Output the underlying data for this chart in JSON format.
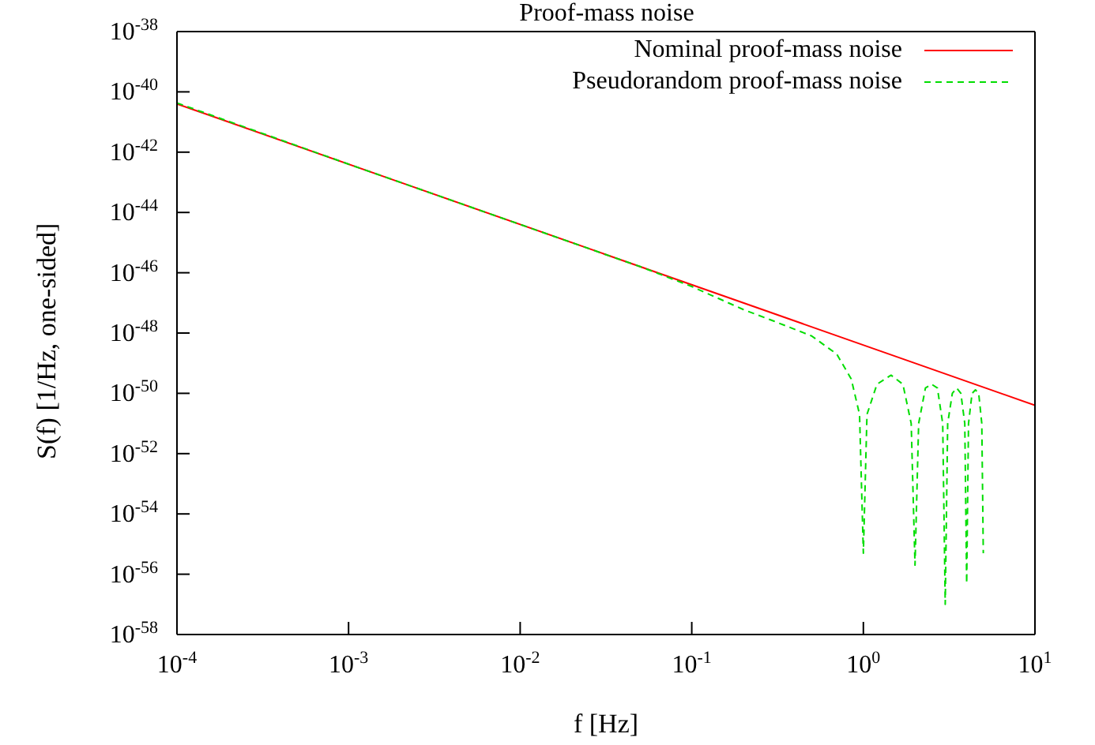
{
  "chart_data": {
    "type": "line",
    "title": "Proof-mass noise",
    "xlabel": "f [Hz]",
    "ylabel": "S(f) [1/Hz, one-sided]",
    "log": "xy",
    "legend": "top right",
    "grid": false,
    "xlim": [
      0.0001,
      10
    ],
    "xticks": [
      {
        "value": 0.0001,
        "label": "10$^{-4}$"
      },
      {
        "value": 0.001,
        "label": "10$^{-3}$"
      },
      {
        "value": 0.01,
        "label": "10$^{-2}$"
      },
      {
        "value": 0.1,
        "label": "10$^{-1}$"
      },
      {
        "value": 1,
        "label": "10$^{0}$"
      },
      {
        "value": 10,
        "label": "10$^{1}$"
      }
    ],
    "ylim": [
      1e-58,
      1e-38
    ],
    "yticks": [
      {
        "value": 1e-58,
        "label": "10$^{-58}$"
      },
      {
        "value": 1e-56,
        "label": "10$^{-56}$"
      },
      {
        "value": 1e-54,
        "label": "10$^{-54}$"
      },
      {
        "value": 1e-52,
        "label": "10$^{-52}$"
      },
      {
        "value": 1e-50,
        "label": "10$^{-50}$"
      },
      {
        "value": 1e-48,
        "label": "10$^{-48}$"
      },
      {
        "value": 1e-46,
        "label": "10$^{-46}$"
      },
      {
        "value": 1e-44,
        "label": "10$^{-44}$"
      },
      {
        "value": 1e-42,
        "label": "10$^{-42}$"
      },
      {
        "value": 1e-40,
        "label": "10$^{-40}$"
      },
      {
        "value": 1e-38,
        "label": "10$^{-38}$"
      }
    ],
    "series": [
      {
        "name": "Nominal proof-mass noise",
        "color": "#ff0000",
        "line_style": "solid",
        "x": [
          0.0001,
          10
        ],
        "values": [
          4e-41,
          4e-51
        ]
      },
      {
        "name": "Pseudorandom proof-mass noise",
        "color": "#00dd00",
        "line_style": "dashed",
        "x": [
          0.0001,
          0.001,
          0.01,
          0.05,
          0.1,
          0.2,
          0.3,
          0.5,
          0.7,
          0.85,
          0.95,
          1,
          1.05,
          1.2,
          1.45,
          1.7,
          1.9,
          2,
          2.1,
          2.3,
          2.5,
          2.7,
          2.9,
          3,
          3.1,
          3.3,
          3.5,
          3.7,
          3.9,
          4,
          4.1,
          4.3,
          4.5,
          4.7,
          4.9,
          5
        ],
        "values": [
          4.3e-41,
          4e-43,
          4e-45,
          1.6e-46,
          3.5e-47,
          6e-48,
          2.5e-48,
          8e-49,
          2e-49,
          3e-50,
          2e-51,
          5e-56,
          2e-51,
          2e-50,
          4e-50,
          2e-50,
          1e-51,
          2e-56,
          1e-51,
          1.5e-50,
          2e-50,
          1.5e-50,
          1e-51,
          1e-57,
          1e-51,
          1e-50,
          1.5e-50,
          1e-50,
          1e-51,
          5e-57,
          1e-51,
          1e-50,
          1.3e-50,
          1e-50,
          1e-51,
          5e-56
        ]
      }
    ]
  }
}
